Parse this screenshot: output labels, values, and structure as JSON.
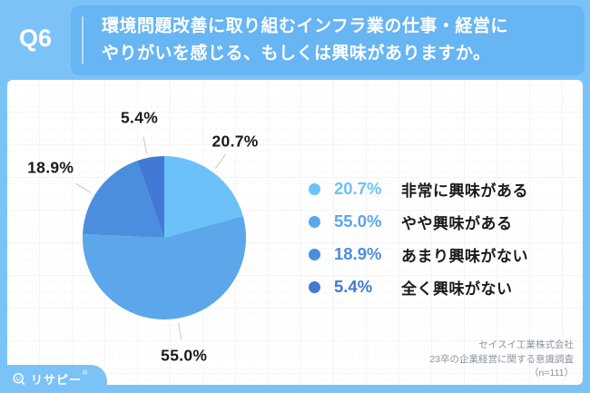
{
  "header": {
    "q_label": "Q6",
    "question": "環境問題改善に取り組むインフラ業の仕事・経営に\nやりがいを感じる、もしくは興味がありますか。"
  },
  "chart_data": {
    "type": "pie",
    "title": "環境問題改善に取り組むインフラ業の仕事・経営にやりがいを感じる、もしくは興味がありますか。",
    "labels": [
      "非常に興味がある",
      "やや興味がある",
      "あまり興味がない",
      "全く興味がない"
    ],
    "values": [
      20.7,
      55.0,
      18.9,
      5.4
    ],
    "value_labels": [
      "20.7%",
      "55.0%",
      "18.9%",
      "5.4%"
    ],
    "colors": [
      "#6CC2F8",
      "#5BA7EA",
      "#4C8EDE",
      "#4279D6"
    ],
    "start_angle_deg": 0,
    "direction": "clockwise",
    "legend_position": "right",
    "n": 111
  },
  "footer": {
    "source_lines": [
      "セイスイ工業株式会社",
      "23卒の企業経営に関する意識調査",
      "（n=111）"
    ],
    "logo_text": "リサピー",
    "logo_mark": "®"
  },
  "colors": {
    "page_bg": "#7BC3F7",
    "question_box": "#67B5F3",
    "label_text": "#1A1A1A",
    "source_text": "#8D939C",
    "leader_line": "#C8CCD2"
  }
}
